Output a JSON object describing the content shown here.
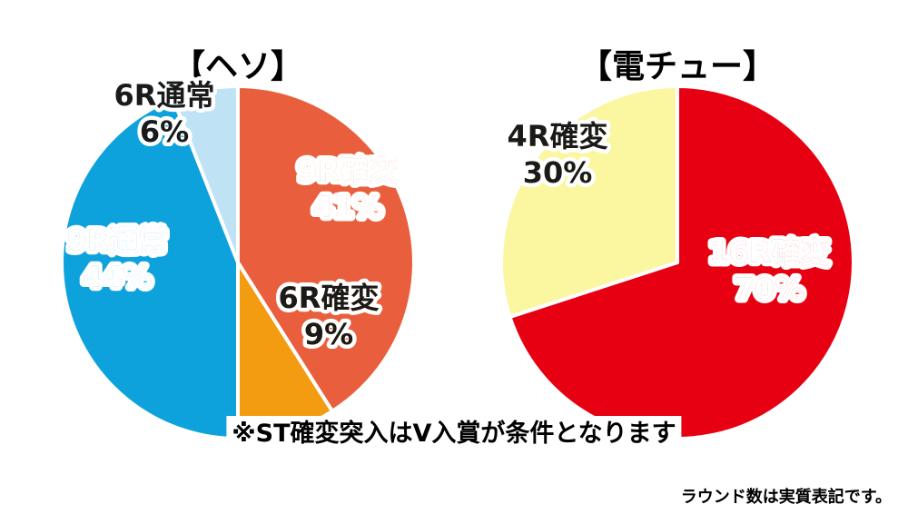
{
  "chart_data": [
    {
      "type": "pie",
      "title": "【ヘソ】",
      "slices": [
        {
          "label": "9R確変",
          "value_label": "41%",
          "value": 41,
          "color": "#e95f3d",
          "text_color": "#ffffff",
          "outline_color": "#e95f3d"
        },
        {
          "label": "6R確変",
          "value_label": "9%",
          "value": 9,
          "color": "#f39c12",
          "text_color": "#1a1a1a",
          "outline_color": "#f39c12"
        },
        {
          "label": "9R通常",
          "value_label": "44%",
          "value": 44,
          "color": "#0ea2dc",
          "text_color": "#ffffff",
          "outline_color": "#0ea2dc"
        },
        {
          "label": "6R通常",
          "value_label": "6%",
          "value": 6,
          "color": "#bfe3f5",
          "text_color": "#1a1a1a",
          "outline_color": "#bfe3f5"
        }
      ]
    },
    {
      "type": "pie",
      "title": "【電チュー】",
      "slices": [
        {
          "label": "16R確変",
          "value_label": "70%",
          "value": 70,
          "color": "#e60012",
          "text_color": "#ffffff",
          "outline_color": "#e60012"
        },
        {
          "label": "4R確変",
          "value_label": "30%",
          "value": 30,
          "color": "#fbf6a0",
          "text_color": "#1a1a1a",
          "outline_color": "#fbf6a0"
        }
      ]
    }
  ],
  "note": "※ST確変突入はV入賞が条件となります",
  "footnote": "ラウンド数は実質表記です。"
}
